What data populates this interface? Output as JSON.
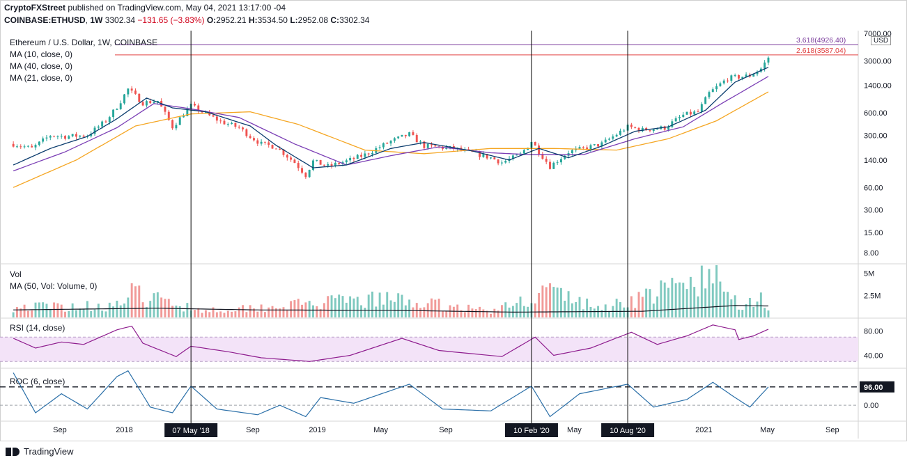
{
  "header": {
    "publisher": "CryptoFXStreet",
    "published_text": "published on TradingView.com, May 04, 2021 13:17:00 -04",
    "symbol": "COINBASE:ETHUSD",
    "interval": "1W",
    "last": "3302.34",
    "change": "−131.65 (−3.83%)",
    "o_label": "O:",
    "o": "2952.21",
    "h_label": "H:",
    "h": "3534.50",
    "l_label": "L:",
    "l": "2952.08",
    "c_label": "C:",
    "c": "3302.34"
  },
  "main_legend": {
    "title": "Ethereum / U.S. Dollar, 1W, COINBASE",
    "ma1": "MA (10, close, 0)",
    "ma2": "MA (40, close, 0)",
    "ma3": "MA (21, close, 0)"
  },
  "vol_legend": {
    "title": "Vol",
    "ma": "MA (50, Vol: Volume, 0)"
  },
  "rsi_legend": {
    "title": "RSI (14, close)"
  },
  "roc_legend": {
    "title": "ROC (6, close)"
  },
  "price_unit": "USD",
  "footer": {
    "brand": "TradingView"
  },
  "colors": {
    "up": "#26a69a",
    "down": "#ef5350",
    "ma10": "#0c3d6e",
    "ma21": "#7b3fb5",
    "ma40": "#f5a623",
    "rsi": "#8e1c8e",
    "rsi_band": "#f3e3f8",
    "roc": "#2a6fa8",
    "fib_2618": "#e04040",
    "fib_3618": "#7a3c9c",
    "vol_ma": "#131722"
  },
  "chart_data": {
    "type": "candlestick",
    "interval": "1W",
    "y_scale": "log",
    "price_ticks": [
      8,
      15,
      30,
      60,
      140,
      300,
      600,
      1400,
      3000,
      7000
    ],
    "price_tick_labels": [
      "8.00",
      "15.00",
      "30.00",
      "60.00",
      "140.00",
      "300.00",
      "600.00",
      "1400.00",
      "3000.00",
      "7000.00"
    ],
    "x_labels": [
      "Sep",
      "2018",
      "Sep",
      "2019",
      "May",
      "Sep",
      "May",
      "2021",
      "May",
      "Sep"
    ],
    "x_label_dates": [
      "2017-09-01",
      "2018-01-01",
      "2018-09-01",
      "2019-01-01",
      "2019-05-01",
      "2019-09-01",
      "2020-05-01",
      "2021-01-01",
      "2021-05-01",
      "2021-09-01"
    ],
    "x_range": [
      "2017-05-20",
      "2021-10-20"
    ],
    "date_markers": [
      {
        "label": "07 May '18",
        "date": "2018-05-07"
      },
      {
        "label": "10 Feb '20",
        "date": "2020-02-10"
      },
      {
        "label": "10 Aug '20",
        "date": "2020-08-10"
      }
    ],
    "fib_levels": [
      {
        "label": "2.618(3587.04)",
        "value": 3587.04
      },
      {
        "label": "3.618(4926.40)",
        "value": 4926.4
      }
    ],
    "close_keypoints": [
      [
        "2017-06-05",
        230
      ],
      [
        "2017-07-10",
        200
      ],
      [
        "2017-08-14",
        300
      ],
      [
        "2017-09-11",
        290
      ],
      [
        "2017-10-23",
        300
      ],
      [
        "2017-11-27",
        470
      ],
      [
        "2017-12-18",
        720
      ],
      [
        "2018-01-08",
        1250
      ],
      [
        "2018-02-05",
        820
      ],
      [
        "2018-03-05",
        870
      ],
      [
        "2018-04-02",
        390
      ],
      [
        "2018-05-07",
        750
      ],
      [
        "2018-06-04",
        580
      ],
      [
        "2018-07-02",
        460
      ],
      [
        "2018-08-06",
        380
      ],
      [
        "2018-08-27",
        290
      ],
      [
        "2018-09-17",
        230
      ],
      [
        "2018-10-15",
        210
      ],
      [
        "2018-11-19",
        130
      ],
      [
        "2018-12-10",
        88
      ],
      [
        "2018-12-24",
        135
      ],
      [
        "2019-01-21",
        115
      ],
      [
        "2019-02-25",
        135
      ],
      [
        "2019-04-01",
        165
      ],
      [
        "2019-05-20",
        250
      ],
      [
        "2019-06-24",
        310
      ],
      [
        "2019-07-22",
        215
      ],
      [
        "2019-09-16",
        200
      ],
      [
        "2019-10-21",
        175
      ],
      [
        "2019-11-25",
        150
      ],
      [
        "2019-12-16",
        130
      ],
      [
        "2020-01-20",
        165
      ],
      [
        "2020-02-10",
        250
      ],
      [
        "2020-03-16",
        115
      ],
      [
        "2020-04-20",
        180
      ],
      [
        "2020-05-25",
        205
      ],
      [
        "2020-06-22",
        230
      ],
      [
        "2020-07-20",
        310
      ],
      [
        "2020-08-10",
        390
      ],
      [
        "2020-09-07",
        355
      ],
      [
        "2020-10-19",
        380
      ],
      [
        "2020-11-23",
        560
      ],
      [
        "2020-12-21",
        620
      ],
      [
        "2021-01-11",
        1100
      ],
      [
        "2021-02-15",
        1750
      ],
      [
        "2021-03-08",
        1820
      ],
      [
        "2021-03-29",
        1900
      ],
      [
        "2021-04-19",
        2350
      ],
      [
        "2021-05-03",
        3302.34
      ]
    ],
    "ma10_keypoints": [
      [
        "2017-06-05",
        120
      ],
      [
        "2017-08-14",
        200
      ],
      [
        "2017-10-23",
        290
      ],
      [
        "2017-12-18",
        500
      ],
      [
        "2018-02-12",
        950
      ],
      [
        "2018-04-02",
        700
      ],
      [
        "2018-06-04",
        620
      ],
      [
        "2018-08-27",
        400
      ],
      [
        "2018-10-15",
        220
      ],
      [
        "2018-12-24",
        110
      ],
      [
        "2019-02-25",
        120
      ],
      [
        "2019-05-20",
        200
      ],
      [
        "2019-07-22",
        240
      ],
      [
        "2019-10-21",
        185
      ],
      [
        "2019-12-30",
        140
      ],
      [
        "2020-02-24",
        200
      ],
      [
        "2020-04-20",
        150
      ],
      [
        "2020-06-22",
        215
      ],
      [
        "2020-08-24",
        340
      ],
      [
        "2020-10-26",
        390
      ],
      [
        "2021-01-04",
        650
      ],
      [
        "2021-03-01",
        1550
      ],
      [
        "2021-05-03",
        2450
      ]
    ],
    "ma21_keypoints": [
      [
        "2017-06-05",
        100
      ],
      [
        "2017-09-11",
        180
      ],
      [
        "2017-12-18",
        380
      ],
      [
        "2018-02-26",
        800
      ],
      [
        "2018-05-07",
        680
      ],
      [
        "2018-08-06",
        520
      ],
      [
        "2018-11-19",
        230
      ],
      [
        "2019-02-25",
        120
      ],
      [
        "2019-05-20",
        160
      ],
      [
        "2019-08-19",
        210
      ],
      [
        "2019-11-25",
        175
      ],
      [
        "2020-02-10",
        165
      ],
      [
        "2020-05-18",
        165
      ],
      [
        "2020-08-24",
        270
      ],
      [
        "2020-11-23",
        390
      ],
      [
        "2021-02-01",
        780
      ],
      [
        "2021-05-03",
        1850
      ]
    ],
    "ma40_keypoints": [
      [
        "2017-06-05",
        60
      ],
      [
        "2017-10-02",
        140
      ],
      [
        "2018-01-22",
        400
      ],
      [
        "2018-05-07",
        580
      ],
      [
        "2018-08-27",
        620
      ],
      [
        "2018-11-26",
        420
      ],
      [
        "2019-04-01",
        190
      ],
      [
        "2019-07-22",
        170
      ],
      [
        "2019-11-25",
        200
      ],
      [
        "2020-03-23",
        200
      ],
      [
        "2020-07-20",
        190
      ],
      [
        "2020-10-26",
        270
      ],
      [
        "2021-01-25",
        470
      ],
      [
        "2021-05-03",
        1150
      ]
    ],
    "volume": {
      "ticks": [
        "2.5M",
        "5M"
      ],
      "tick_values": [
        2500000,
        5000000
      ],
      "keypoints": [
        [
          "2017-06-05",
          1300000
        ],
        [
          "2017-12-18",
          1500000
        ],
        [
          "2018-01-15",
          2900000
        ],
        [
          "2018-06-04",
          900000
        ],
        [
          "2019-05-13",
          2300000
        ],
        [
          "2019-12-02",
          800000
        ],
        [
          "2020-03-16",
          3400000
        ],
        [
          "2020-06-15",
          1100000
        ],
        [
          "2021-01-18",
          5000000
        ],
        [
          "2021-03-08",
          1700000
        ],
        [
          "2021-04-19",
          2500000
        ],
        [
          "2021-05-03",
          1300000
        ]
      ],
      "ma50_keypoints": [
        [
          "2017-06-05",
          850000
        ],
        [
          "2018-03-05",
          1050000
        ],
        [
          "2018-09-03",
          850000
        ],
        [
          "2019-06-03",
          800000
        ],
        [
          "2020-01-06",
          600000
        ],
        [
          "2020-09-07",
          700000
        ],
        [
          "2021-03-01",
          1350000
        ],
        [
          "2021-05-03",
          1300000
        ]
      ]
    },
    "rsi": {
      "ticks": [
        "40.00",
        "80.00"
      ],
      "tick_values": [
        40,
        80
      ],
      "band": [
        30,
        70
      ],
      "keypoints": [
        [
          "2017-06-05",
          68
        ],
        [
          "2017-07-17",
          52
        ],
        [
          "2017-09-04",
          62
        ],
        [
          "2017-10-16",
          58
        ],
        [
          "2017-12-18",
          82
        ],
        [
          "2018-01-15",
          88
        ],
        [
          "2018-02-05",
          60
        ],
        [
          "2018-04-09",
          38
        ],
        [
          "2018-05-07",
          55
        ],
        [
          "2018-07-16",
          46
        ],
        [
          "2018-09-17",
          36
        ],
        [
          "2018-12-17",
          30
        ],
        [
          "2019-03-04",
          40
        ],
        [
          "2019-06-10",
          68
        ],
        [
          "2019-08-19",
          48
        ],
        [
          "2019-12-16",
          38
        ],
        [
          "2020-02-17",
          70
        ],
        [
          "2020-03-23",
          40
        ],
        [
          "2020-06-01",
          52
        ],
        [
          "2020-08-17",
          78
        ],
        [
          "2020-10-05",
          58
        ],
        [
          "2020-11-30",
          72
        ],
        [
          "2021-01-18",
          90
        ],
        [
          "2021-03-01",
          82
        ],
        [
          "2021-03-08",
          66
        ],
        [
          "2021-04-05",
          72
        ],
        [
          "2021-05-03",
          83
        ]
      ]
    },
    "roc": {
      "ticks": [
        "0.00"
      ],
      "tick_values": [
        0
      ],
      "reference_label": "96.00",
      "reference_value": 96,
      "keypoints": [
        [
          "2017-06-05",
          170
        ],
        [
          "2017-07-17",
          -40
        ],
        [
          "2017-09-04",
          60
        ],
        [
          "2017-10-23",
          -20
        ],
        [
          "2017-12-18",
          150
        ],
        [
          "2018-01-08",
          180
        ],
        [
          "2018-02-19",
          -10
        ],
        [
          "2018-04-02",
          -40
        ],
        [
          "2018-05-07",
          100
        ],
        [
          "2018-06-25",
          -20
        ],
        [
          "2018-09-10",
          -50
        ],
        [
          "2018-10-22",
          0
        ],
        [
          "2018-12-10",
          -60
        ],
        [
          "2019-01-07",
          40
        ],
        [
          "2019-03-11",
          10
        ],
        [
          "2019-06-24",
          110
        ],
        [
          "2019-08-26",
          -20
        ],
        [
          "2019-11-25",
          -30
        ],
        [
          "2020-02-10",
          100
        ],
        [
          "2020-03-16",
          -60
        ],
        [
          "2020-05-11",
          60
        ],
        [
          "2020-08-10",
          110
        ],
        [
          "2020-09-28",
          -10
        ],
        [
          "2020-11-30",
          30
        ],
        [
          "2021-01-18",
          120
        ],
        [
          "2021-03-01",
          40
        ],
        [
          "2021-03-29",
          -10
        ],
        [
          "2021-05-03",
          96
        ]
      ]
    }
  }
}
